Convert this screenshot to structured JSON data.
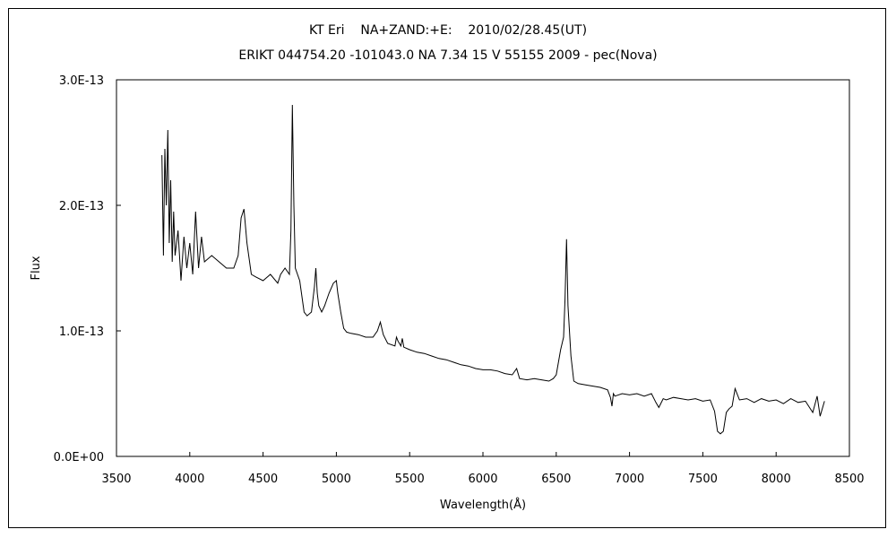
{
  "chart_data": {
    "type": "line",
    "title": "KT Eri    NA+ZAND:+E:    2010/02/28.45(UT)",
    "subtitle": "ERIKT 044754.20 -101043.0 NA 7.34 15 V 55155 2009 - pec(Nova)",
    "xlabel": "Wavelength(Å)",
    "ylabel": "Flux",
    "xlim": [
      3500,
      8500
    ],
    "ylim": [
      0,
      3e-13
    ],
    "xticks": [
      "3500",
      "4000",
      "4500",
      "5000",
      "5500",
      "6000",
      "6500",
      "7000",
      "7500",
      "8000",
      "8500"
    ],
    "yticks": [
      "0.0E+00",
      "1.0E-13",
      "2.0E-13",
      "3.0E-13"
    ],
    "grid": false,
    "series": [
      {
        "color": "#000000",
        "x": [
          3810,
          3820,
          3830,
          3840,
          3850,
          3860,
          3870,
          3880,
          3890,
          3900,
          3920,
          3940,
          3960,
          3980,
          4000,
          4020,
          4040,
          4060,
          4080,
          4100,
          4150,
          4200,
          4250,
          4300,
          4330,
          4350,
          4370,
          4390,
          4420,
          4450,
          4500,
          4550,
          4600,
          4620,
          4650,
          4680,
          4690,
          4700,
          4710,
          4720,
          4750,
          4780,
          4800,
          4830,
          4850,
          4860,
          4870,
          4880,
          4900,
          4920,
          4950,
          4980,
          5000,
          5010,
          5030,
          5050,
          5070,
          5100,
          5150,
          5200,
          5250,
          5280,
          5300,
          5320,
          5350,
          5400,
          5410,
          5420,
          5440,
          5450,
          5460,
          5500,
          5550,
          5600,
          5650,
          5700,
          5750,
          5800,
          5850,
          5900,
          5950,
          6000,
          6050,
          6100,
          6150,
          6200,
          6230,
          6250,
          6300,
          6350,
          6400,
          6450,
          6480,
          6500,
          6530,
          6550,
          6560,
          6570,
          6580,
          6600,
          6620,
          6650,
          6700,
          6750,
          6800,
          6850,
          6870,
          6880,
          6890,
          6900,
          6950,
          7000,
          7050,
          7100,
          7150,
          7180,
          7200,
          7230,
          7250,
          7300,
          7350,
          7400,
          7450,
          7500,
          7550,
          7580,
          7600,
          7620,
          7640,
          7660,
          7680,
          7700,
          7720,
          7750,
          7800,
          7850,
          7900,
          7950,
          8000,
          8050,
          8100,
          8150,
          8200,
          8250,
          8280,
          8300,
          8330
        ],
        "y": [
          2.4e-13,
          1.6e-13,
          2.45e-13,
          2e-13,
          2.6e-13,
          1.7e-13,
          2.2e-13,
          1.55e-13,
          1.95e-13,
          1.6e-13,
          1.8e-13,
          1.4e-13,
          1.75e-13,
          1.5e-13,
          1.7e-13,
          1.45e-13,
          1.95e-13,
          1.5e-13,
          1.75e-13,
          1.55e-13,
          1.6e-13,
          1.55e-13,
          1.5e-13,
          1.5e-13,
          1.6e-13,
          1.9e-13,
          1.97e-13,
          1.7e-13,
          1.45e-13,
          1.43e-13,
          1.4e-13,
          1.45e-13,
          1.38e-13,
          1.45e-13,
          1.5e-13,
          1.45e-13,
          1.8e-13,
          2.8e-13,
          2e-13,
          1.5e-13,
          1.4e-13,
          1.15e-13,
          1.12e-13,
          1.15e-13,
          1.35e-13,
          1.5e-13,
          1.3e-13,
          1.2e-13,
          1.15e-13,
          1.2e-13,
          1.3e-13,
          1.38e-13,
          1.4e-13,
          1.3e-13,
          1.15e-13,
          1.02e-13,
          9.9e-14,
          9.8e-14,
          9.7e-14,
          9.5e-14,
          9.5e-14,
          1e-13,
          1.07e-13,
          9.7e-14,
          9e-14,
          8.8e-14,
          9.5e-14,
          9.2e-14,
          8.8e-14,
          9.4e-14,
          8.7e-14,
          8.5e-14,
          8.3e-14,
          8.2e-14,
          8e-14,
          7.8e-14,
          7.7e-14,
          7.5e-14,
          7.3e-14,
          7.2e-14,
          7e-14,
          6.9e-14,
          6.9e-14,
          6.8e-14,
          6.6e-14,
          6.5e-14,
          7e-14,
          6.2e-14,
          6.1e-14,
          6.2e-14,
          6.1e-14,
          6e-14,
          6.2e-14,
          6.5e-14,
          8.5e-14,
          9.5e-14,
          1.25e-13,
          1.73e-13,
          1.2e-13,
          8e-14,
          6e-14,
          5.8e-14,
          5.7e-14,
          5.6e-14,
          5.5e-14,
          5.3e-14,
          4.7e-14,
          4e-14,
          5e-14,
          4.8e-14,
          5e-14,
          4.9e-14,
          5e-14,
          4.8e-14,
          5e-14,
          4.3e-14,
          3.9e-14,
          4.6e-14,
          4.5e-14,
          4.7e-14,
          4.6e-14,
          4.5e-14,
          4.6e-14,
          4.4e-14,
          4.5e-14,
          3.6e-14,
          2e-14,
          1.8e-14,
          2e-14,
          3.5e-14,
          3.8e-14,
          4e-14,
          5.4e-14,
          4.5e-14,
          4.6e-14,
          4.3e-14,
          4.6e-14,
          4.4e-14,
          4.5e-14,
          4.2e-14,
          4.6e-14,
          4.3e-14,
          4.4e-14,
          3.5e-14,
          4.8e-14,
          3.2e-14,
          4.4e-14
        ]
      }
    ]
  }
}
